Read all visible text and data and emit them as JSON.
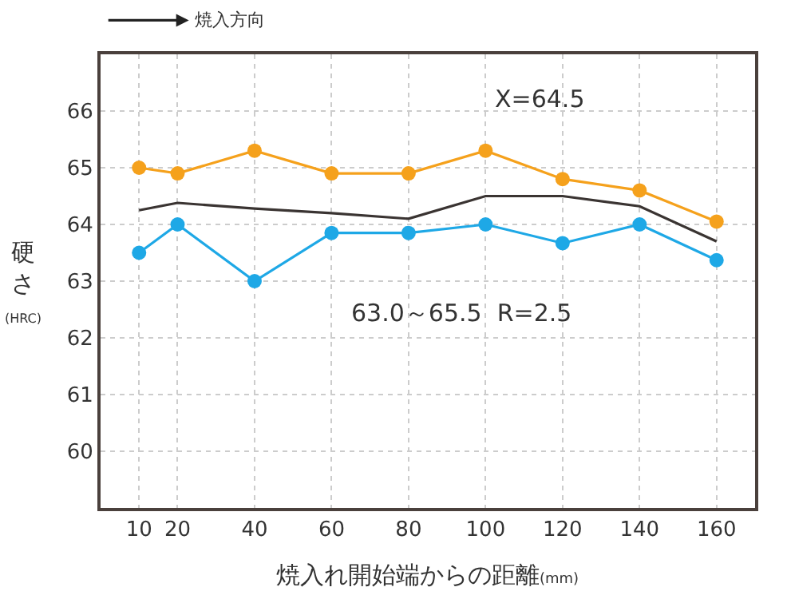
{
  "chart_data": {
    "type": "line",
    "xlabel": "焼入れ開始端からの距離(mm)",
    "ylabel": "硬さ(HRC)",
    "x": [
      10,
      20,
      40,
      60,
      80,
      100,
      120,
      140,
      160
    ],
    "series": [
      {
        "color": "#f5a11c",
        "marker": "circle",
        "values": [
          65.0,
          64.9,
          65.3,
          64.9,
          64.9,
          65.3,
          64.8,
          64.6,
          64.05
        ]
      },
      {
        "color": "#3a3432",
        "marker": "none",
        "values": [
          64.25,
          64.38,
          64.28,
          64.2,
          64.1,
          64.5,
          64.5,
          64.32,
          63.7
        ]
      },
      {
        "color": "#1ea8e6",
        "marker": "circle",
        "values": [
          63.5,
          64.0,
          63.0,
          63.85,
          63.85,
          64.0,
          63.67,
          64.0,
          63.37
        ]
      }
    ],
    "annotations": [
      "焼入方向",
      "X=64.5",
      "63.0～65.5  R=2.5"
    ],
    "xlim": [
      0,
      170
    ],
    "ylim": [
      59,
      67
    ],
    "xticks": [
      10,
      20,
      40,
      60,
      80,
      100,
      120,
      140,
      160
    ],
    "yticks": [
      60,
      61,
      62,
      63,
      64,
      65,
      66
    ],
    "grid": true,
    "line_style": "solid"
  }
}
